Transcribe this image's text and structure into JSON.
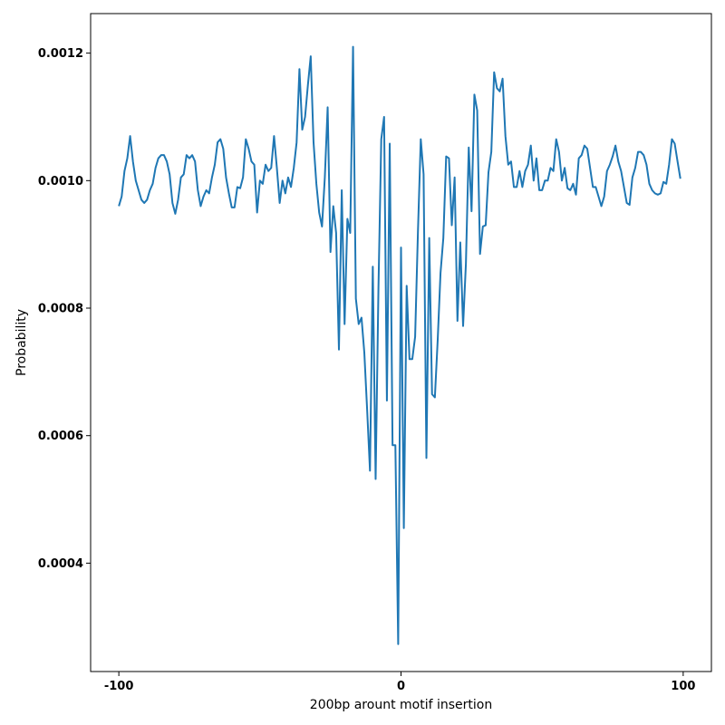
{
  "chart_data": {
    "type": "line",
    "title": "",
    "xlabel": "200bp arount motif insertion",
    "ylabel": "Probability",
    "xlim": [
      -110,
      110
    ],
    "ylim": [
      0.00023,
      0.001262
    ],
    "xticks": [
      -100,
      0,
      100
    ],
    "xtick_labels": [
      "-100",
      "0",
      "100"
    ],
    "yticks": [
      0.0004,
      0.0006,
      0.0008,
      0.001,
      0.0012
    ],
    "ytick_labels": [
      "0.0004",
      "0.0006",
      "0.0008",
      "0.0010",
      "0.0012"
    ],
    "grid": false,
    "legend": "none",
    "series": [
      {
        "color": "#1f77b4",
        "x": [
          -100,
          -99,
          -98,
          -97,
          -96,
          -95,
          -94,
          -93,
          -92,
          -91,
          -90,
          -89,
          -88,
          -87,
          -86,
          -85,
          -84,
          -83,
          -82,
          -81,
          -80,
          -79,
          -78,
          -77,
          -76,
          -75,
          -74,
          -73,
          -72,
          -71,
          -70,
          -69,
          -68,
          -67,
          -66,
          -65,
          -64,
          -63,
          -62,
          -61,
          -60,
          -59,
          -58,
          -57,
          -56,
          -55,
          -54,
          -53,
          -52,
          -51,
          -50,
          -49,
          -48,
          -47,
          -46,
          -45,
          -44,
          -43,
          -42,
          -41,
          -40,
          -39,
          -38,
          -37,
          -36,
          -35,
          -34,
          -33,
          -32,
          -31,
          -30,
          -29,
          -28,
          -27,
          -26,
          -25,
          -24,
          -23,
          -22,
          -21,
          -20,
          -19,
          -18,
          -17,
          -16,
          -15,
          -14,
          -13,
          -12,
          -11,
          -10,
          -9,
          -8,
          -7,
          -6,
          -5,
          -4,
          -3,
          -2,
          -1,
          0,
          1,
          2,
          3,
          4,
          5,
          6,
          7,
          8,
          9,
          10,
          11,
          12,
          13,
          14,
          15,
          16,
          17,
          18,
          19,
          20,
          21,
          22,
          23,
          24,
          25,
          26,
          27,
          28,
          29,
          30,
          31,
          32,
          33,
          34,
          35,
          36,
          37,
          38,
          39,
          40,
          41,
          42,
          43,
          44,
          45,
          46,
          47,
          48,
          49,
          50,
          51,
          52,
          53,
          54,
          55,
          56,
          57,
          58,
          59,
          60,
          61,
          62,
          63,
          64,
          65,
          66,
          67,
          68,
          69,
          70,
          71,
          72,
          73,
          74,
          75,
          76,
          77,
          78,
          79,
          80,
          81,
          82,
          83,
          84,
          85,
          86,
          87,
          88,
          89,
          90,
          91,
          92,
          93,
          94,
          95,
          96,
          97,
          98,
          99
        ],
        "y": [
          0.00096,
          0.000975,
          0.001015,
          0.001035,
          0.00107,
          0.00103,
          0.001,
          0.000985,
          0.00097,
          0.000965,
          0.00097,
          0.000985,
          0.000995,
          0.00102,
          0.001035,
          0.00104,
          0.00104,
          0.00103,
          0.00101,
          0.000965,
          0.000948,
          0.00097,
          0.001005,
          0.00101,
          0.00104,
          0.001035,
          0.00104,
          0.00103,
          0.000985,
          0.00096,
          0.000975,
          0.000985,
          0.00098,
          0.001005,
          0.001025,
          0.00106,
          0.001065,
          0.00105,
          0.001005,
          0.00098,
          0.000958,
          0.000958,
          0.00099,
          0.000988,
          0.001005,
          0.001065,
          0.00105,
          0.00103,
          0.001025,
          0.00095,
          0.001,
          0.000995,
          0.001025,
          0.001015,
          0.00102,
          0.00107,
          0.00102,
          0.000965,
          0.001,
          0.00098,
          0.001005,
          0.00099,
          0.00102,
          0.00106,
          0.001175,
          0.00108,
          0.0011,
          0.00115,
          0.001195,
          0.00106,
          0.000995,
          0.00095,
          0.000928,
          0.001005,
          0.001115,
          0.000888,
          0.00096,
          0.000918,
          0.000735,
          0.000985,
          0.000775,
          0.00094,
          0.000918,
          0.00121,
          0.000815,
          0.000775,
          0.000785,
          0.00073,
          0.00064,
          0.000545,
          0.000865,
          0.000532,
          0.00083,
          0.001065,
          0.0011,
          0.000655,
          0.001058,
          0.000585,
          0.000585,
          0.000273,
          0.000895,
          0.000455,
          0.000835,
          0.00072,
          0.00072,
          0.000755,
          0.00092,
          0.001065,
          0.00101,
          0.000565,
          0.00091,
          0.000665,
          0.00066,
          0.00075,
          0.000855,
          0.00091,
          0.001038,
          0.001035,
          0.00093,
          0.001005,
          0.00078,
          0.000903,
          0.000772,
          0.00087,
          0.001052,
          0.000952,
          0.001135,
          0.00111,
          0.000885,
          0.000928,
          0.00093,
          0.001013,
          0.001045,
          0.00117,
          0.001145,
          0.00114,
          0.00116,
          0.00107,
          0.001025,
          0.00103,
          0.00099,
          0.00099,
          0.001015,
          0.00099,
          0.001015,
          0.001025,
          0.001055,
          0.001,
          0.001035,
          0.000985,
          0.000985,
          0.001,
          0.001,
          0.00102,
          0.001015,
          0.001065,
          0.001045,
          0.001,
          0.00102,
          0.000988,
          0.000985,
          0.000995,
          0.000978,
          0.001035,
          0.00104,
          0.001055,
          0.00105,
          0.00102,
          0.00099,
          0.00099,
          0.000975,
          0.00096,
          0.000975,
          0.001015,
          0.001025,
          0.001038,
          0.001055,
          0.00103,
          0.001015,
          0.00099,
          0.000965,
          0.000962,
          0.001005,
          0.00102,
          0.001045,
          0.001045,
          0.00104,
          0.001025,
          0.000995,
          0.000985,
          0.00098,
          0.000978,
          0.00098,
          0.000998,
          0.000995,
          0.001025,
          0.001065,
          0.001058,
          0.00103,
          0.001003
        ]
      }
    ]
  }
}
